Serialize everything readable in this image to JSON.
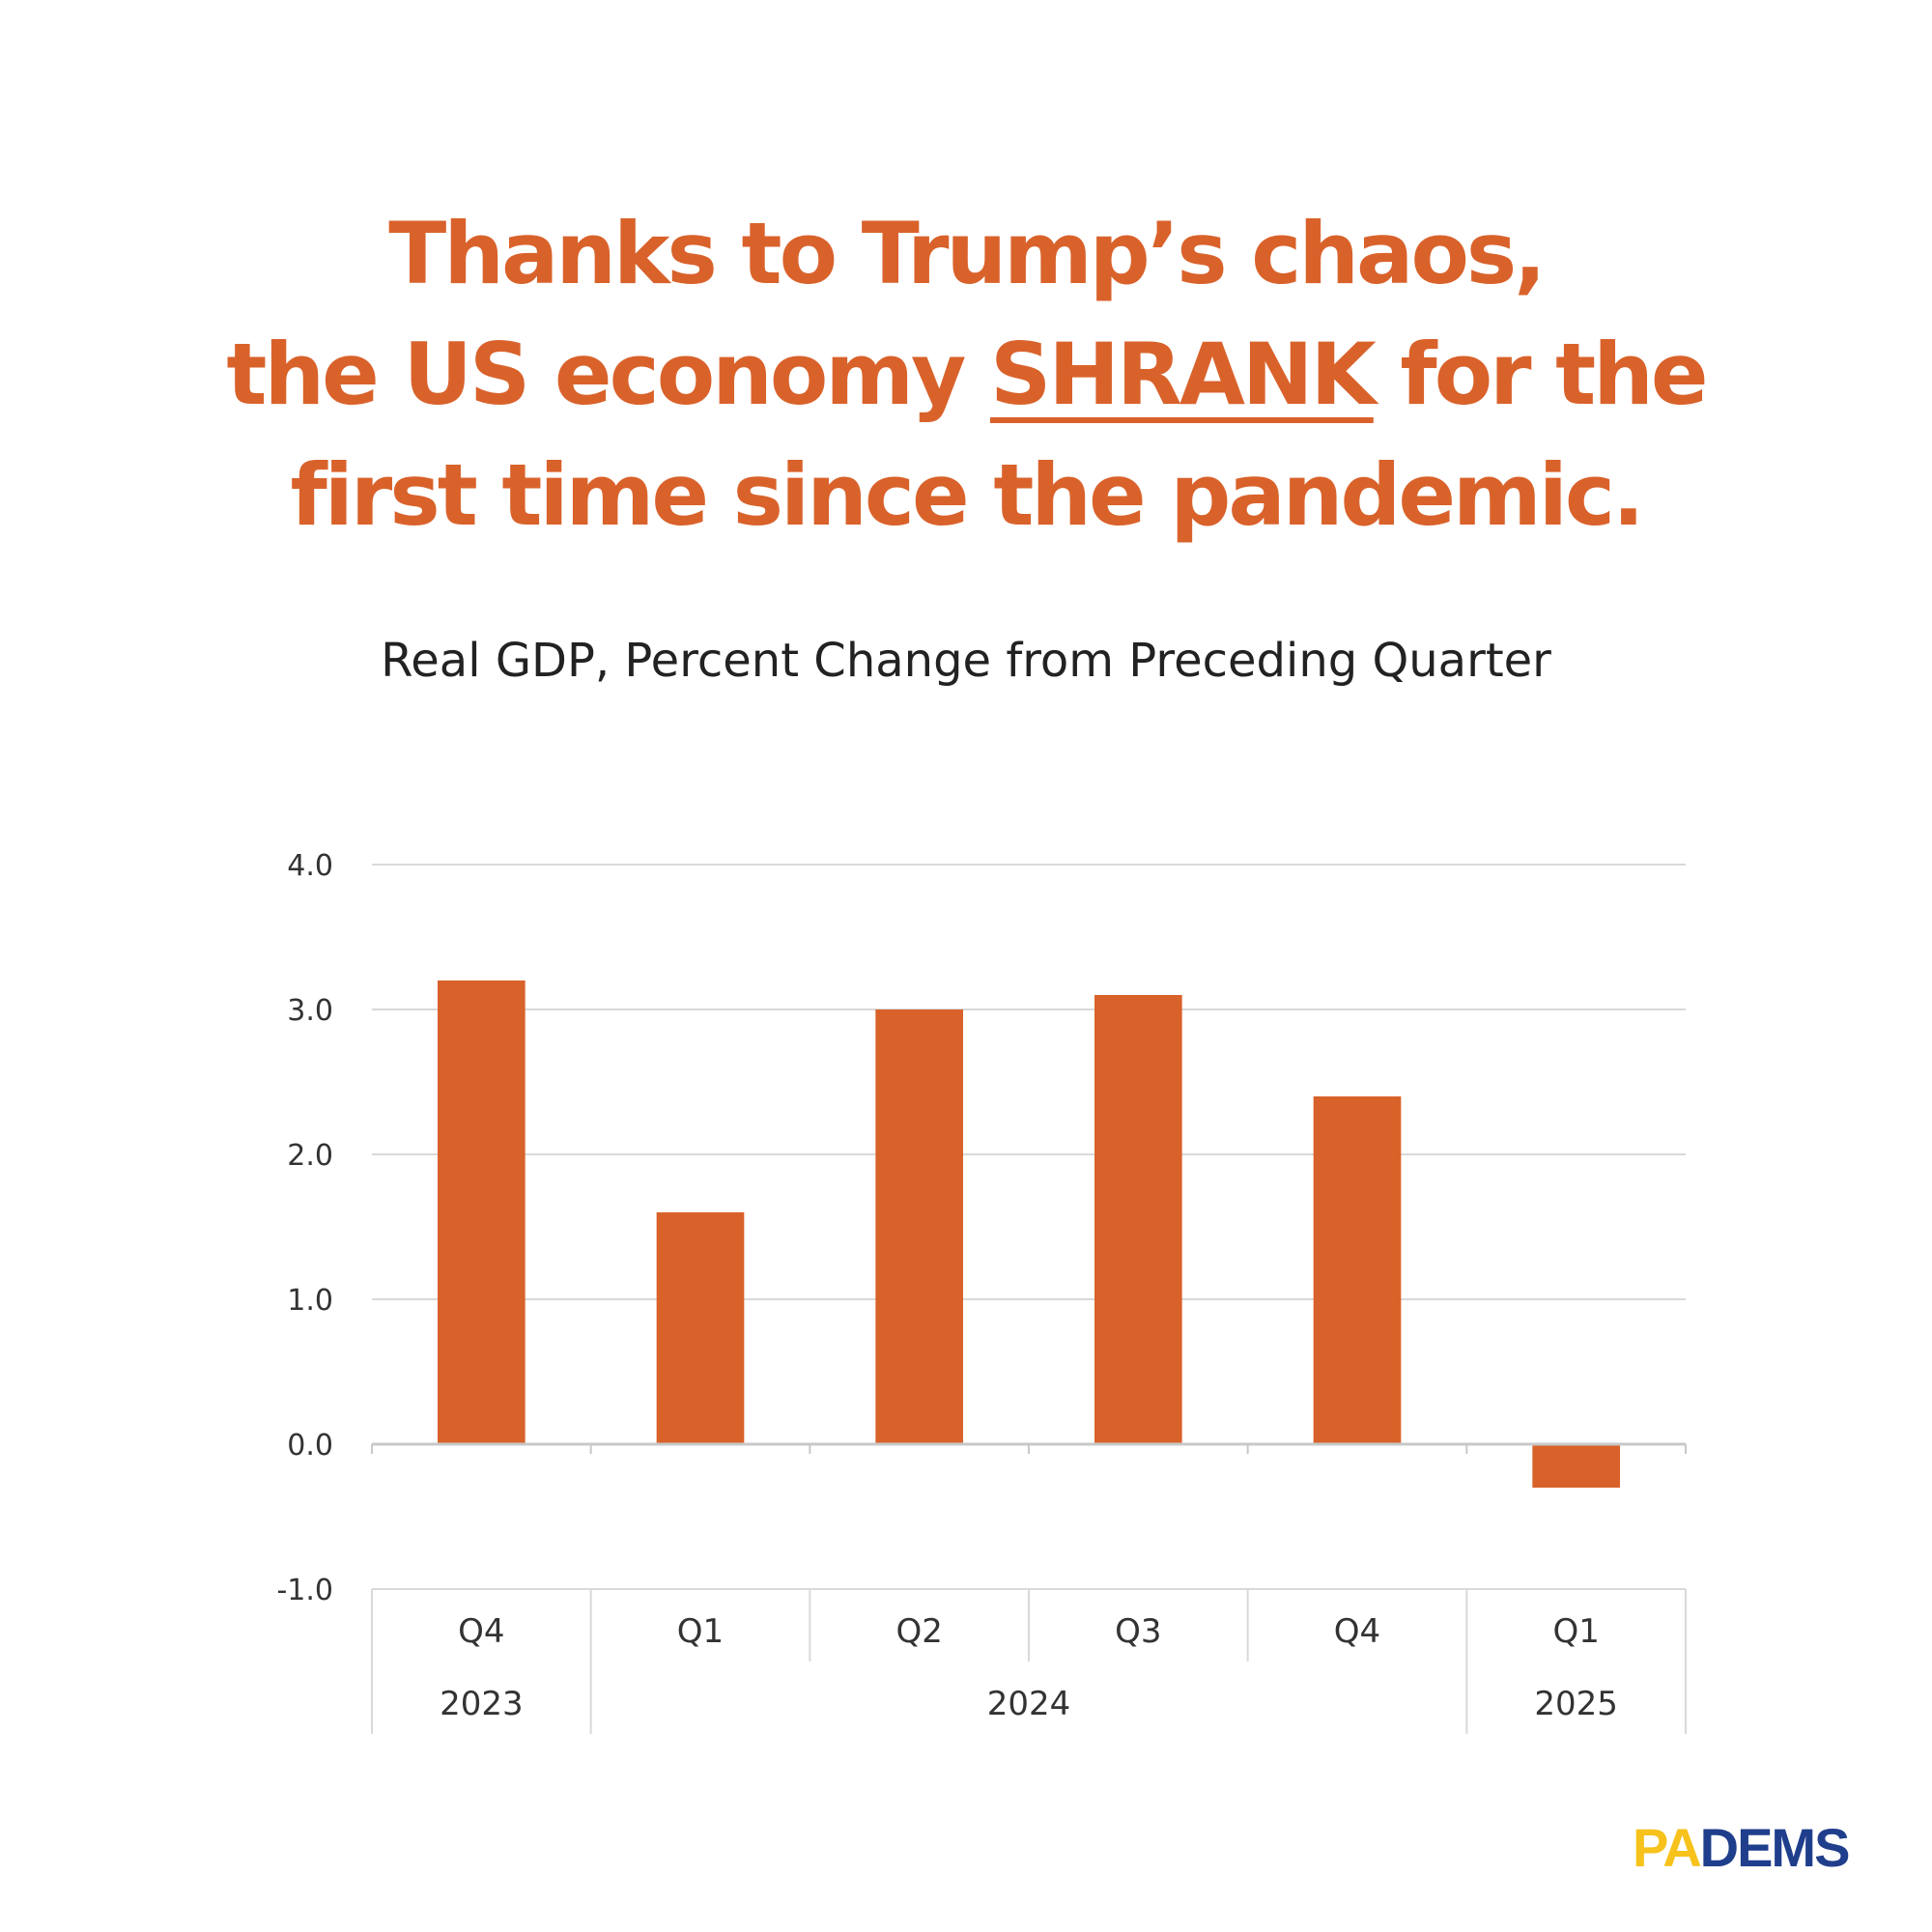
{
  "headline": {
    "line1": "Thanks to Trump’s chaos,",
    "line2_pre": "the US economy ",
    "line2_emph": "SHRANK",
    "line2_post": " for the",
    "line3": "first time since the pandemic."
  },
  "colors": {
    "accent": "#D9622B",
    "grid": "#d9d9d9",
    "pa_yellow": "#F6C21B",
    "dems_blue": "#1F3E8C"
  },
  "logo": {
    "pa": "PA",
    "dems": "DEMS"
  },
  "chart_data": {
    "type": "bar",
    "title": "Real GDP, Percent Change from Preceding Quarter",
    "xlabel": "",
    "ylabel": "",
    "categories": [
      "Q4",
      "Q1",
      "Q2",
      "Q3",
      "Q4",
      "Q1"
    ],
    "year_groups": [
      {
        "label": "2023",
        "span": 1
      },
      {
        "label": "2024",
        "span": 4
      },
      {
        "label": "2025",
        "span": 1
      }
    ],
    "values": [
      3.2,
      1.6,
      3.0,
      3.1,
      2.4,
      -0.3
    ],
    "ylim": [
      -1.0,
      4.0
    ],
    "yticks": [
      "4.0",
      "3.0",
      "2.0",
      "1.0",
      "0.0",
      "-1.0"
    ],
    "ytick_values": [
      4,
      3,
      2,
      1,
      0,
      -1
    ],
    "grid": true,
    "legend": "none",
    "bar_color": "#D9622B"
  }
}
